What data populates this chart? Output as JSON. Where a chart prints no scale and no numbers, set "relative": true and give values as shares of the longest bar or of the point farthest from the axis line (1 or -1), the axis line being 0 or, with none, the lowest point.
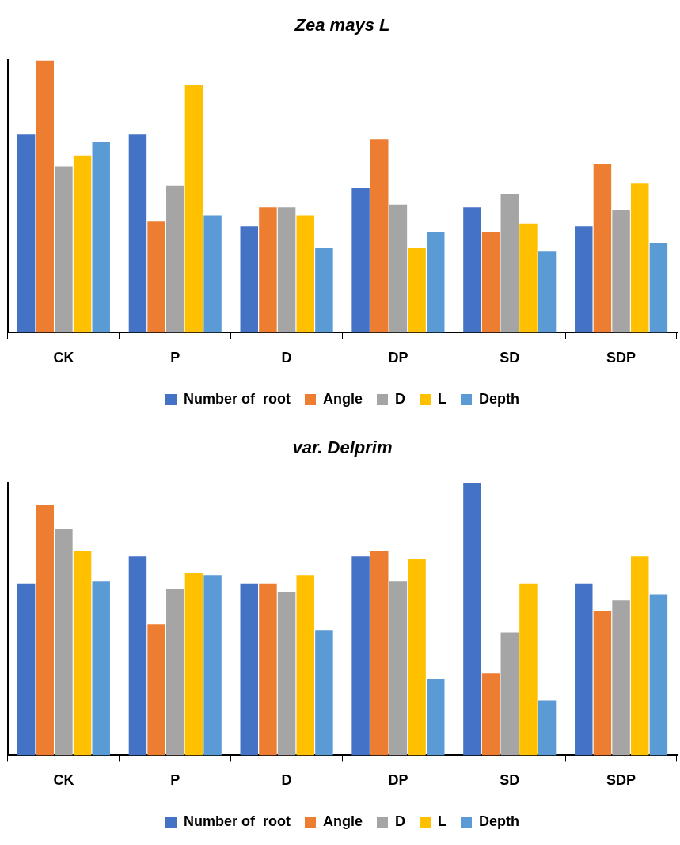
{
  "chart_data": [
    {
      "type": "bar",
      "title": "Zea mays L",
      "relative": true,
      "legend": "bottom",
      "grid": false,
      "categories": [
        "CK",
        "P",
        "D",
        "DP",
        "SD",
        "SDP"
      ],
      "series": [
        {
          "name": "Number of  root",
          "color": "#4472c4",
          "values": [
            0.73,
            0.73,
            0.39,
            0.53,
            0.46,
            0.39
          ]
        },
        {
          "name": "Angle",
          "color": "#ed7d31",
          "values": [
            1,
            0.41,
            0.46,
            0.71,
            0.37,
            0.62
          ]
        },
        {
          "name": "D",
          "color": "#a5a5a5",
          "values": [
            0.61,
            0.54,
            0.46,
            0.47,
            0.51,
            0.45
          ]
        },
        {
          "name": "L",
          "color": "#ffc000",
          "values": [
            0.65,
            0.91,
            0.43,
            0.31,
            0.4,
            0.55
          ]
        },
        {
          "name": "Depth",
          "color": "#5b9bd5",
          "values": [
            0.7,
            0.43,
            0.31,
            0.37,
            0.3,
            0.33
          ]
        }
      ]
    },
    {
      "type": "bar",
      "title": "var. Delprim",
      "relative": true,
      "legend": "bottom",
      "grid": false,
      "categories": [
        "CK",
        "P",
        "D",
        "DP",
        "SD",
        "SDP"
      ],
      "series": [
        {
          "name": "Number of  root",
          "color": "#4472c4",
          "values": [
            0.63,
            0.73,
            0.63,
            0.73,
            1,
            0.63
          ]
        },
        {
          "name": "Angle",
          "color": "#ed7d31",
          "values": [
            0.92,
            0.48,
            0.63,
            0.75,
            0.3,
            0.53
          ]
        },
        {
          "name": "D",
          "color": "#a5a5a5",
          "values": [
            0.83,
            0.61,
            0.6,
            0.64,
            0.45,
            0.57
          ]
        },
        {
          "name": "L",
          "color": "#ffc000",
          "values": [
            0.75,
            0.67,
            0.66,
            0.72,
            0.63,
            0.73
          ]
        },
        {
          "name": "Depth",
          "color": "#5b9bd5",
          "values": [
            0.64,
            0.66,
            0.46,
            0.28,
            0.2,
            0.59
          ]
        }
      ]
    }
  ]
}
